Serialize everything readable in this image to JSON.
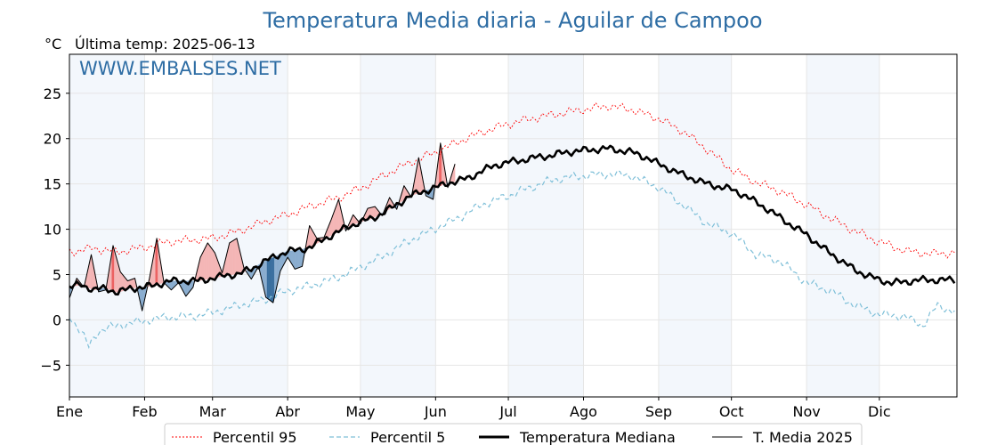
{
  "chart_data": {
    "type": "line",
    "title": "Temperatura Media diaria - Aguilar de Campoo",
    "unit_label": "°C",
    "subtitle": "Última temp: 2025-06-13",
    "watermark": "WWW.EMBALSES.NET",
    "ylim": [
      -8.5,
      29.3
    ],
    "xlim": [
      0,
      366
    ],
    "y_ticks": [
      -5,
      0,
      5,
      10,
      15,
      20,
      25
    ],
    "y_tick_labels": [
      "−5",
      "0",
      "5",
      "10",
      "15",
      "20",
      "25"
    ],
    "months": [
      "Ene",
      "Feb",
      "Mar",
      "Abr",
      "May",
      "Jun",
      "Jul",
      "Ago",
      "Sep",
      "Oct",
      "Nov",
      "Dic"
    ],
    "month_start_days": [
      0,
      31,
      59,
      90,
      120,
      151,
      181,
      212,
      243,
      273,
      304,
      334
    ],
    "grid": true,
    "shaded_month_bands": true,
    "legend_position": "bottom-center",
    "colors": {
      "title": "#2e6da4",
      "watermark": "#2e6da4",
      "p95": "#ff0000",
      "p5": "#7ebfd8",
      "median": "#000000",
      "year": "#000000",
      "above": "#f4b6b6",
      "above_strong": "#ec6262",
      "below": "#8aadcf",
      "below_strong": "#3a6f9f",
      "band": "#f3f7fc"
    },
    "series": [
      {
        "name": "Percentil 95",
        "style": "dotted-red",
        "points": [
          [
            0,
            7.5
          ],
          [
            10,
            7.9
          ],
          [
            20,
            7.5
          ],
          [
            31,
            8.0
          ],
          [
            40,
            8.6
          ],
          [
            50,
            8.8
          ],
          [
            59,
            9.0
          ],
          [
            70,
            9.8
          ],
          [
            80,
            10.8
          ],
          [
            90,
            11.6
          ],
          [
            100,
            12.6
          ],
          [
            110,
            13.4
          ],
          [
            120,
            14.5
          ],
          [
            130,
            16.0
          ],
          [
            140,
            17.3
          ],
          [
            151,
            18.5
          ],
          [
            160,
            19.6
          ],
          [
            170,
            20.7
          ],
          [
            181,
            21.6
          ],
          [
            192,
            22.3
          ],
          [
            203,
            22.8
          ],
          [
            212,
            23.2
          ],
          [
            222,
            23.6
          ],
          [
            232,
            23.2
          ],
          [
            243,
            22.2
          ],
          [
            253,
            20.8
          ],
          [
            263,
            18.8
          ],
          [
            273,
            16.6
          ],
          [
            283,
            15.2
          ],
          [
            293,
            14.2
          ],
          [
            304,
            12.7
          ],
          [
            314,
            11.2
          ],
          [
            324,
            9.8
          ],
          [
            334,
            8.6
          ],
          [
            345,
            7.6
          ],
          [
            355,
            7.3
          ],
          [
            365,
            7.4
          ]
        ]
      },
      {
        "name": "Percentil 5",
        "style": "dashed-lightblue",
        "points": [
          [
            0,
            0.4
          ],
          [
            5,
            -1.3
          ],
          [
            8,
            -3.0
          ],
          [
            12,
            -1.2
          ],
          [
            20,
            -0.6
          ],
          [
            31,
            -0.1
          ],
          [
            40,
            0.3
          ],
          [
            50,
            0.4
          ],
          [
            59,
            0.8
          ],
          [
            70,
            1.6
          ],
          [
            80,
            2.2
          ],
          [
            90,
            3.2
          ],
          [
            100,
            3.8
          ],
          [
            110,
            4.6
          ],
          [
            120,
            5.8
          ],
          [
            130,
            7.1
          ],
          [
            140,
            8.7
          ],
          [
            151,
            10.1
          ],
          [
            160,
            11.2
          ],
          [
            170,
            12.7
          ],
          [
            181,
            13.7
          ],
          [
            190,
            14.6
          ],
          [
            200,
            15.5
          ],
          [
            212,
            15.9
          ],
          [
            222,
            16.1
          ],
          [
            232,
            15.9
          ],
          [
            243,
            14.6
          ],
          [
            253,
            12.7
          ],
          [
            263,
            10.6
          ],
          [
            273,
            9.6
          ],
          [
            283,
            7.2
          ],
          [
            293,
            6.5
          ],
          [
            304,
            4.1
          ],
          [
            314,
            3.2
          ],
          [
            324,
            1.6
          ],
          [
            334,
            0.6
          ],
          [
            344,
            0.4
          ],
          [
            352,
            -0.6
          ],
          [
            358,
            1.6
          ],
          [
            365,
            0.9
          ]
        ]
      },
      {
        "name": "Temperatura Mediana",
        "style": "thick-black",
        "points": [
          [
            0,
            3.6
          ],
          [
            5,
            3.9
          ],
          [
            10,
            3.3
          ],
          [
            15,
            3.5
          ],
          [
            20,
            3.0
          ],
          [
            25,
            3.5
          ],
          [
            31,
            3.6
          ],
          [
            36,
            3.9
          ],
          [
            42,
            4.3
          ],
          [
            48,
            4.3
          ],
          [
            53,
            4.3
          ],
          [
            59,
            4.6
          ],
          [
            65,
            4.9
          ],
          [
            70,
            5.1
          ],
          [
            75,
            5.6
          ],
          [
            80,
            6.4
          ],
          [
            85,
            7.0
          ],
          [
            90,
            7.6
          ],
          [
            95,
            7.7
          ],
          [
            100,
            8.1
          ],
          [
            105,
            8.9
          ],
          [
            110,
            9.6
          ],
          [
            115,
            10.3
          ],
          [
            120,
            10.8
          ],
          [
            125,
            11.2
          ],
          [
            130,
            11.9
          ],
          [
            135,
            12.7
          ],
          [
            140,
            13.6
          ],
          [
            145,
            14.1
          ],
          [
            151,
            14.6
          ],
          [
            156,
            15.1
          ],
          [
            160,
            15.3
          ],
          [
            165,
            15.7
          ],
          [
            170,
            16.4
          ],
          [
            175,
            17.0
          ],
          [
            181,
            17.4
          ],
          [
            186,
            17.6
          ],
          [
            192,
            17.9
          ],
          [
            198,
            18.1
          ],
          [
            203,
            18.4
          ],
          [
            208,
            18.6
          ],
          [
            212,
            18.7
          ],
          [
            217,
            18.8
          ],
          [
            222,
            18.9
          ],
          [
            227,
            18.7
          ],
          [
            232,
            18.5
          ],
          [
            238,
            17.9
          ],
          [
            243,
            17.2
          ],
          [
            248,
            16.6
          ],
          [
            253,
            16.0
          ],
          [
            258,
            15.5
          ],
          [
            263,
            15.0
          ],
          [
            268,
            14.7
          ],
          [
            273,
            14.4
          ],
          [
            278,
            13.8
          ],
          [
            283,
            13.0
          ],
          [
            288,
            12.2
          ],
          [
            293,
            11.3
          ],
          [
            298,
            10.4
          ],
          [
            304,
            9.4
          ],
          [
            309,
            8.3
          ],
          [
            314,
            7.3
          ],
          [
            319,
            6.4
          ],
          [
            324,
            5.5
          ],
          [
            329,
            4.9
          ],
          [
            334,
            4.4
          ],
          [
            339,
            4.1
          ],
          [
            345,
            4.2
          ],
          [
            350,
            4.4
          ],
          [
            355,
            4.4
          ],
          [
            360,
            4.4
          ],
          [
            365,
            4.4
          ]
        ]
      },
      {
        "name": "T. Media 2025",
        "style": "thin-black",
        "points": [
          [
            0,
            2.4
          ],
          [
            3,
            4.6
          ],
          [
            6,
            3.6
          ],
          [
            9,
            7.2
          ],
          [
            12,
            3.1
          ],
          [
            15,
            3.3
          ],
          [
            18,
            8.2
          ],
          [
            21,
            5.3
          ],
          [
            24,
            4.3
          ],
          [
            27,
            4.6
          ],
          [
            30,
            1.0
          ],
          [
            33,
            4.6
          ],
          [
            36,
            9.0
          ],
          [
            39,
            4.1
          ],
          [
            42,
            3.3
          ],
          [
            45,
            4.1
          ],
          [
            48,
            2.6
          ],
          [
            51,
            3.6
          ],
          [
            54,
            6.9
          ],
          [
            57,
            8.5
          ],
          [
            60,
            7.4
          ],
          [
            63,
            5.2
          ],
          [
            66,
            8.5
          ],
          [
            69,
            9.0
          ],
          [
            72,
            5.7
          ],
          [
            75,
            4.5
          ],
          [
            78,
            5.9
          ],
          [
            81,
            2.5
          ],
          [
            84,
            1.9
          ],
          [
            87,
            5.4
          ],
          [
            90,
            6.9
          ],
          [
            93,
            5.6
          ],
          [
            96,
            5.9
          ],
          [
            99,
            10.4
          ],
          [
            102,
            9.0
          ],
          [
            105,
            9.1
          ],
          [
            108,
            11.1
          ],
          [
            111,
            13.3
          ],
          [
            114,
            9.8
          ],
          [
            117,
            11.6
          ],
          [
            120,
            10.6
          ],
          [
            123,
            12.3
          ],
          [
            126,
            12.5
          ],
          [
            129,
            11.5
          ],
          [
            132,
            13.5
          ],
          [
            135,
            12.2
          ],
          [
            138,
            14.8
          ],
          [
            141,
            13.5
          ],
          [
            144,
            17.9
          ],
          [
            147,
            13.7
          ],
          [
            150,
            13.3
          ],
          [
            153,
            19.5
          ],
          [
            156,
            14.6
          ],
          [
            159,
            17.2
          ]
        ]
      }
    ]
  },
  "legend": {
    "items": [
      {
        "label": "Percentil 95",
        "style": "dotted-red"
      },
      {
        "label": "Percentil 5",
        "style": "dashed-lightblue"
      },
      {
        "label": "Temperatura Mediana",
        "style": "thick-black"
      },
      {
        "label": "T. Media 2025",
        "style": "thin-black"
      }
    ]
  }
}
